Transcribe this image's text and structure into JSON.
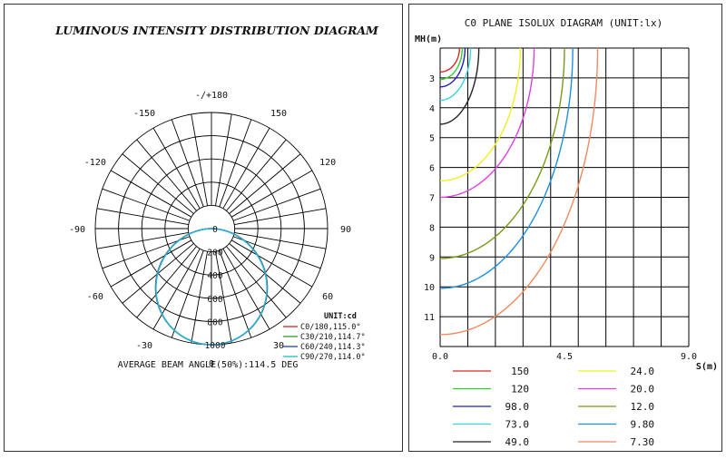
{
  "chart_data": [
    {
      "type": "polar",
      "title": "LUMINOUS INTENSITY DISTRIBUTION DIAGRAM",
      "angle_labels": [
        {
          "angle": 180,
          "text": "-/+180"
        },
        {
          "angle": 150,
          "text": "150"
        },
        {
          "angle": -150,
          "text": "-150"
        },
        {
          "angle": 120,
          "text": "120"
        },
        {
          "angle": -120,
          "text": "-120"
        },
        {
          "angle": 90,
          "text": "90"
        },
        {
          "angle": -90,
          "text": "-90"
        },
        {
          "angle": 60,
          "text": "60"
        },
        {
          "angle": -60,
          "text": "-60"
        },
        {
          "angle": 30,
          "text": "30"
        },
        {
          "angle": -30,
          "text": "-30"
        },
        {
          "angle": 0,
          "text": "0"
        }
      ],
      "radial_max": 1000,
      "radial_ticks": [
        {
          "value": 0,
          "text": "0"
        },
        {
          "value": 200,
          "text": "200"
        },
        {
          "value": 400,
          "text": "400"
        },
        {
          "value": 600,
          "text": "600"
        },
        {
          "value": 800,
          "text": "800"
        },
        {
          "value": 1000,
          "text": "1000"
        }
      ],
      "unit_label": "UNIT:cd",
      "series": [
        {
          "name": "C0/180,115.0°",
          "color": "#d62728",
          "peak": 1000,
          "beam_angle": 115.0
        },
        {
          "name": "C30/210,114.7°",
          "color": "#2ca02c",
          "peak": 1000,
          "beam_angle": 114.7
        },
        {
          "name": "C60/240,114.3°",
          "color": "#1f3fbf",
          "peak": 1000,
          "beam_angle": 114.3
        },
        {
          "name": "C90/270,114.0°",
          "color": "#22b8d8",
          "peak": 1000,
          "beam_angle": 114.0
        }
      ],
      "footer": "AVERAGE BEAM ANGLE(50%):114.5 DEG"
    },
    {
      "type": "isolux",
      "title": "C0 PLANE ISOLUX DIAGRAM (UNIT:lx)",
      "ylabel": "MH(m)",
      "xlabel": "S(m)",
      "xlim": [
        0,
        9
      ],
      "ylim": [
        2,
        12
      ],
      "x_ticks": [
        {
          "value": 0,
          "text": "0.0"
        },
        {
          "value": 4.5,
          "text": "4.5"
        },
        {
          "value": 9,
          "text": "9.0"
        }
      ],
      "y_ticks": [
        {
          "value": 3,
          "text": "3"
        },
        {
          "value": 4,
          "text": "4"
        },
        {
          "value": 5,
          "text": "5"
        },
        {
          "value": 6,
          "text": "6"
        },
        {
          "value": 7,
          "text": "7"
        },
        {
          "value": 8,
          "text": "8"
        },
        {
          "value": 9,
          "text": "9"
        },
        {
          "value": 10,
          "text": "10"
        },
        {
          "value": 11,
          "text": "11"
        }
      ],
      "series": [
        {
          "name": "150",
          "color": "#d62728",
          "s_max": 0.7,
          "mh_max": 2.8
        },
        {
          "name": "120",
          "color": "#33cc33",
          "s_max": 0.8,
          "mh_max": 3.05
        },
        {
          "name": "98.0",
          "color": "#1f1fbf",
          "s_max": 0.9,
          "mh_max": 3.3
        },
        {
          "name": "73.0",
          "color": "#33d6e0",
          "s_max": 1.1,
          "mh_max": 3.75
        },
        {
          "name": "49.0",
          "color": "#222222",
          "s_max": 1.4,
          "mh_max": 4.55
        },
        {
          "name": "24.0",
          "color": "#f0f020",
          "s_max": 2.9,
          "mh_max": 6.45
        },
        {
          "name": "20.0",
          "color": "#e040e0",
          "s_max": 3.4,
          "mh_max": 7.0
        },
        {
          "name": "12.0",
          "color": "#7a9a1a",
          "s_max": 4.5,
          "mh_max": 9.05
        },
        {
          "name": "9.80",
          "color": "#1f8fe0",
          "s_max": 4.8,
          "mh_max": 10.05
        },
        {
          "name": "7.30",
          "color": "#f08a60",
          "s_max": 5.7,
          "mh_max": 11.6
        }
      ]
    }
  ]
}
